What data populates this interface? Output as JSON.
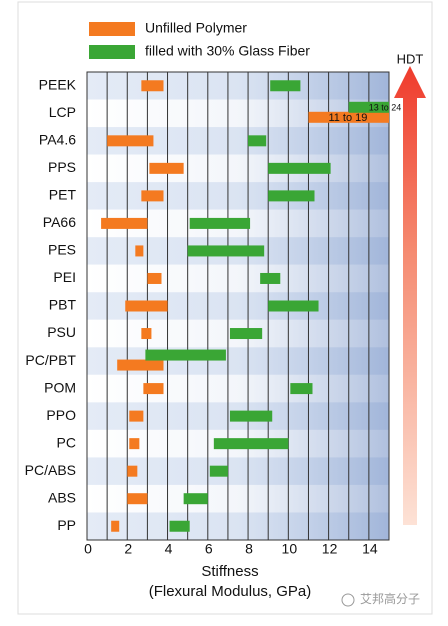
{
  "chart_data": {
    "type": "range-bar",
    "categories": [
      "PEEK",
      "LCP",
      "PA4.6",
      "PPS",
      "PET",
      "PA66",
      "PES",
      "PEI",
      "PBT",
      "PSU",
      "PC/PBT",
      "POM",
      "PPO",
      "PC",
      "PC/ABS",
      "ABS",
      "PP"
    ],
    "series": [
      {
        "name": "Unfilled Polymer",
        "color": "#f47a20",
        "values": [
          [
            2.7,
            3.8
          ],
          [
            11,
            19
          ],
          [
            1.0,
            3.3
          ],
          [
            3.1,
            4.8
          ],
          [
            2.7,
            3.8
          ],
          [
            0.7,
            3.0
          ],
          [
            2.4,
            2.8
          ],
          [
            3.0,
            3.7
          ],
          [
            1.9,
            4.0
          ],
          [
            2.7,
            3.2
          ],
          [
            1.5,
            3.8
          ],
          [
            2.8,
            3.8
          ],
          [
            2.1,
            2.8
          ],
          [
            2.1,
            2.6
          ],
          [
            2.0,
            2.5
          ],
          [
            2.0,
            3.0
          ],
          [
            1.2,
            1.6
          ]
        ],
        "value_labels": [
          null,
          "11 to 19",
          null,
          null,
          null,
          null,
          null,
          null,
          null,
          null,
          null,
          null,
          null,
          null,
          null,
          null,
          null
        ]
      },
      {
        "name": "filled with 30% Glass Fiber",
        "color": "#3aa635",
        "values": [
          [
            9.1,
            10.6
          ],
          [
            13,
            24
          ],
          [
            8.0,
            8.9
          ],
          [
            9.0,
            12.1
          ],
          [
            9.0,
            11.3
          ],
          [
            5.1,
            8.1
          ],
          [
            5.0,
            8.8
          ],
          [
            8.6,
            9.6
          ],
          [
            9.0,
            11.5
          ],
          [
            7.1,
            8.7
          ],
          [
            2.9,
            6.9
          ],
          [
            10.1,
            11.2
          ],
          [
            7.1,
            9.2
          ],
          [
            6.3,
            10.0
          ],
          [
            6.1,
            7.0
          ],
          [
            4.8,
            6.0
          ],
          [
            4.1,
            5.1
          ]
        ],
        "value_labels": [
          null,
          "13 to 24",
          null,
          null,
          null,
          null,
          null,
          null,
          null,
          null,
          null,
          null,
          null,
          null,
          null,
          null,
          null
        ]
      }
    ],
    "xlim": [
      0,
      15
    ],
    "xticks": [
      0,
      2,
      4,
      6,
      8,
      10,
      12,
      14
    ],
    "minor_xticks": [
      1,
      3,
      5,
      7,
      9,
      11,
      13,
      15
    ],
    "xlabel": [
      "Stiffness",
      "(Flexural Modulus, GPa)"
    ],
    "arrow_label": "HDT",
    "watermark": "艾邦高分子"
  }
}
